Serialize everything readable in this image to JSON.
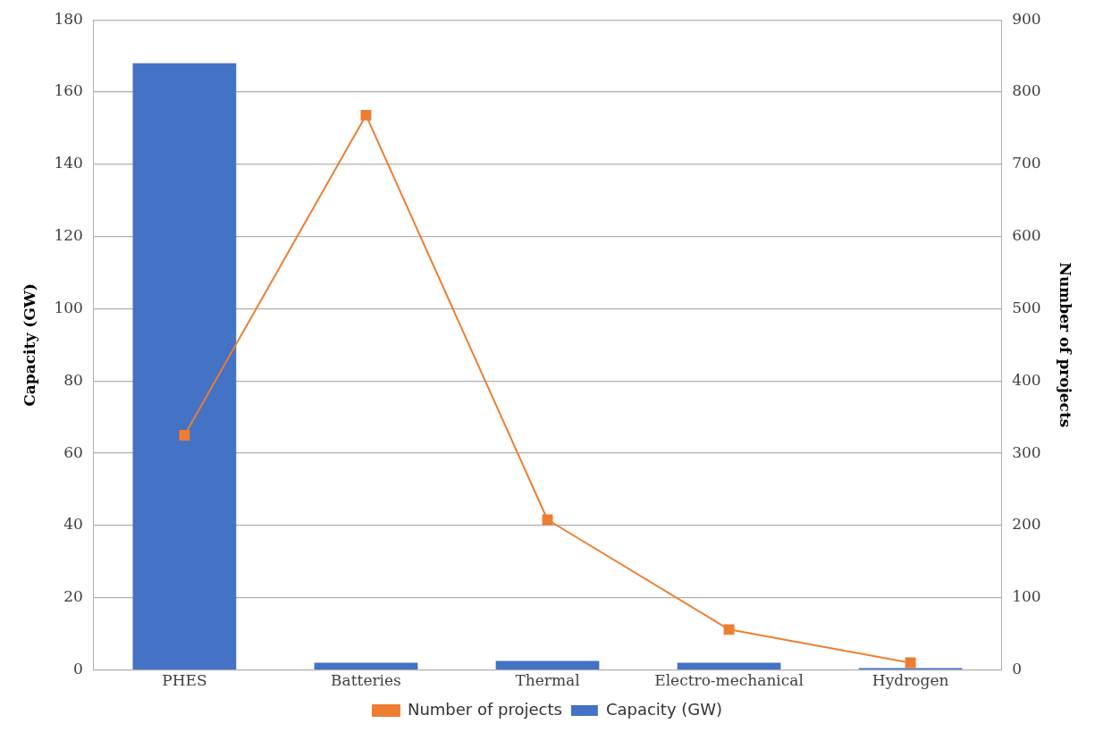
{
  "chart_data": {
    "type": "bar",
    "categories": [
      "PHES",
      "Batteries",
      "Thermal",
      "Electro-mechanical",
      "Hydrogen"
    ],
    "ylabel": "Capacity (GW)",
    "y2label": "Number of projects",
    "series": [
      {
        "name": "Capacity (GW)",
        "color": "#4472c4",
        "values": [
          168,
          2,
          2.5,
          2,
          0.5
        ]
      },
      {
        "name": "Number of projects",
        "type": "line",
        "axis": "y2",
        "color": "#ed7d31",
        "values": [
          325,
          768,
          208,
          56,
          10
        ]
      }
    ],
    "ylim": [
      0,
      180
    ],
    "yticks": [
      0,
      20,
      40,
      60,
      80,
      100,
      120,
      140,
      160,
      180
    ],
    "y2lim": [
      0,
      900
    ],
    "y2ticks": [
      0,
      100,
      200,
      300,
      400,
      500,
      600,
      700,
      800,
      900
    ],
    "grid": "y",
    "legend": "bottom",
    "marker": "square"
  }
}
